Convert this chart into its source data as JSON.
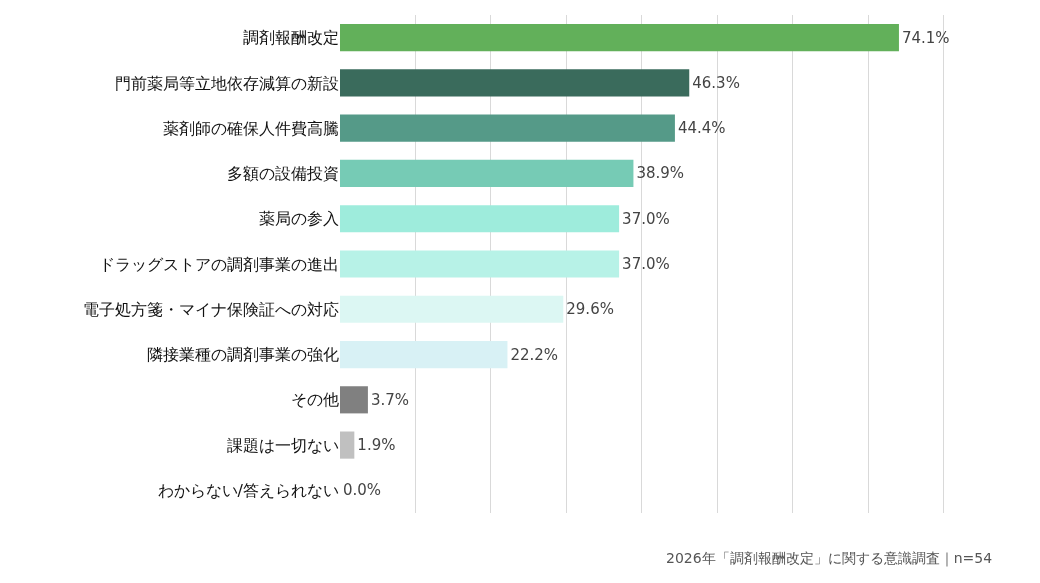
{
  "chart_data": {
    "type": "bar",
    "orientation": "horizontal",
    "categories": [
      "調剤報酬改定",
      "門前薬局等立地依存減算の新設",
      "薬剤師の確保人件費高騰",
      "多額の設備投資",
      "薬局の参入",
      "ドラッグストアの調剤事業の進出",
      "電子処方箋・マイナ保険証への対応",
      "隣接業種の調剤事業の強化",
      "その他",
      "課題は一切ない",
      "わからない/答えられない"
    ],
    "values": [
      74.1,
      46.3,
      44.4,
      38.9,
      37.0,
      37.0,
      29.6,
      22.2,
      3.7,
      1.9,
      0.0
    ],
    "value_labels": [
      "74.1%",
      "46.3%",
      "44.4%",
      "38.9%",
      "37.0%",
      "37.0%",
      "29.6%",
      "22.2%",
      "3.7%",
      "1.9%",
      "0.0%"
    ],
    "colors": [
      "#62b05a",
      "#3a6b5c",
      "#559a88",
      "#76cbb5",
      "#9eecdc",
      "#b7f2e7",
      "#dcf7f3",
      "#d8f1f5",
      "#808080",
      "#c0c0c0",
      "#dddddd"
    ],
    "xticks": [
      {
        "value": 10,
        "label": null
      },
      {
        "value": 20,
        "label": null
      },
      {
        "value": 30,
        "label": null
      },
      {
        "value": 40,
        "label": null
      },
      {
        "value": 50,
        "label": null
      },
      {
        "value": 60,
        "label": null
      },
      {
        "value": 70,
        "label": null
      },
      {
        "value": 80,
        "label": null
      }
    ],
    "grid": "x",
    "tick_labels": "y",
    "legend": false,
    "annotations": [
      "2026年「調剤報酬改定」に関する意識調査｜n=54"
    ]
  }
}
